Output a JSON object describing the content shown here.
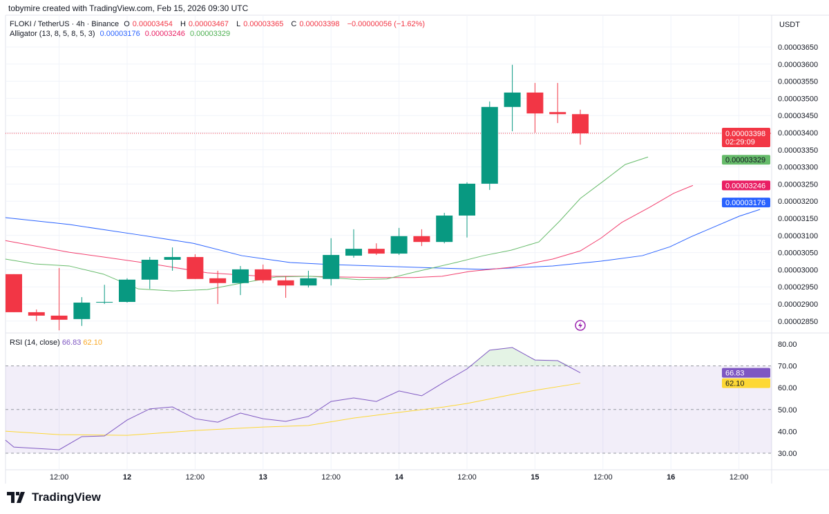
{
  "credit": "tobymire created with TradingView.com, Feb 15, 2026 09:30 UTC",
  "legend": {
    "symbol": "FLOKI / TetherUS · 4h · Binance",
    "o_label": "O",
    "o": "0.00003454",
    "h_label": "H",
    "h": "0.00003467",
    "l_label": "L",
    "l": "0.00003365",
    "c_label": "C",
    "c": "0.00003398",
    "change": "−0.00000056 (−1.62%)",
    "alligator": "Alligator (13, 8, 5, 8, 5, 3)",
    "jaw": "0.00003176",
    "teeth": "0.00003246",
    "lips": "0.00003329"
  },
  "rsi_legend": {
    "label": "RSI (14, close)",
    "rsi": "66.83",
    "ma": "62.10"
  },
  "currency": "USDT",
  "colors": {
    "up": "#089981",
    "down": "#f23645",
    "jaw": "#2962ff",
    "teeth": "#f23d6d",
    "lips": "#66bb6a",
    "rsi": "#7e57c2",
    "rsi_ma": "#fdd835"
  },
  "brand": "TradingView",
  "chart_data": [
    {
      "type": "candlestick",
      "title": "FLOKI / TetherUS · 4h · Binance",
      "price_unit": "1e-8 USDT",
      "ylim": [
        2830,
        3680
      ],
      "y_ticks": [
        "0.00003650",
        "0.00003600",
        "0.00003550",
        "0.00003500",
        "0.00003450",
        "0.00003400",
        "0.00003350",
        "0.00003300",
        "0.00003250",
        "0.00003200",
        "0.00003150",
        "0.00003100",
        "0.00003050",
        "0.00003000",
        "0.00002950",
        "0.00002900",
        "0.00002850"
      ],
      "x_ticks": [
        {
          "i": 2,
          "label": "12:00"
        },
        {
          "i": 5,
          "label": "12"
        },
        {
          "i": 8,
          "label": "12:00"
        },
        {
          "i": 11,
          "label": "13"
        },
        {
          "i": 14,
          "label": "12:00"
        },
        {
          "i": 17,
          "label": "14"
        },
        {
          "i": 20,
          "label": "12:00"
        },
        {
          "i": 23,
          "label": "15"
        },
        {
          "i": 26,
          "label": "12:00"
        },
        {
          "i": 29,
          "label": "16"
        },
        {
          "i": 32,
          "label": "12:00"
        }
      ],
      "candles": [
        [
          2987,
          2987,
          2876,
          2876
        ],
        [
          2876,
          2884,
          2850,
          2866
        ],
        [
          2866,
          3005,
          2823,
          2854
        ],
        [
          2856,
          2920,
          2836,
          2904
        ],
        [
          2904,
          2956,
          2900,
          2906
        ],
        [
          2906,
          2975,
          2904,
          2971
        ],
        [
          2971,
          3037,
          2944,
          3029
        ],
        [
          3029,
          3065,
          2997,
          3037
        ],
        [
          3037,
          3045,
          2973,
          2973
        ],
        [
          2975,
          2997,
          2900,
          2961
        ],
        [
          2961,
          3011,
          2926,
          3001
        ],
        [
          3001,
          3015,
          2961,
          2969
        ],
        [
          2969,
          2981,
          2918,
          2954
        ],
        [
          2954,
          2997,
          2948,
          2975
        ],
        [
          2973,
          3092,
          2954,
          3043
        ],
        [
          3041,
          3118,
          3035,
          3061
        ],
        [
          3061,
          3077,
          3043,
          3047
        ],
        [
          3047,
          3122,
          3043,
          3098
        ],
        [
          3098,
          3118,
          3069,
          3081
        ],
        [
          3081,
          3166,
          3077,
          3158
        ],
        [
          3158,
          3255,
          3094,
          3251
        ],
        [
          3251,
          3491,
          3233,
          3475
        ],
        [
          3475,
          3598,
          3404,
          3517
        ],
        [
          3517,
          3545,
          3400,
          3456
        ],
        [
          3460,
          3545,
          3428,
          3454
        ],
        [
          3454,
          3467,
          3365,
          3398
        ]
      ],
      "alligator": {
        "jaw": [
          [
            -0.37,
            3152
          ],
          [
            2.44,
            3132
          ],
          [
            5.49,
            3102
          ],
          [
            7.93,
            3077
          ],
          [
            10.06,
            3041
          ],
          [
            12.2,
            3021
          ],
          [
            14.02,
            3015
          ],
          [
            17.68,
            3007
          ],
          [
            20.73,
            3001
          ],
          [
            23.78,
            3011
          ],
          [
            25.91,
            3025
          ],
          [
            27.74,
            3041
          ],
          [
            28.96,
            3067
          ],
          [
            29.88,
            3096
          ],
          [
            32.01,
            3156
          ],
          [
            32.93,
            3176
          ]
        ],
        "teeth": [
          [
            -0.37,
            3085
          ],
          [
            2.44,
            3051
          ],
          [
            3.96,
            3037
          ],
          [
            6.1,
            3017
          ],
          [
            8.54,
            2991
          ],
          [
            10.98,
            2981
          ],
          [
            12.8,
            2981
          ],
          [
            15.85,
            2977
          ],
          [
            17.68,
            2977
          ],
          [
            18.9,
            2981
          ],
          [
            20.12,
            2995
          ],
          [
            21.95,
            3007
          ],
          [
            23.78,
            3031
          ],
          [
            25,
            3055
          ],
          [
            25.91,
            3092
          ],
          [
            26.83,
            3138
          ],
          [
            28.05,
            3182
          ],
          [
            29.12,
            3223
          ],
          [
            29.97,
            3246
          ]
        ],
        "lips": [
          [
            -0.37,
            3031
          ],
          [
            0.91,
            3017
          ],
          [
            2.44,
            3011
          ],
          [
            3.96,
            2987
          ],
          [
            5.49,
            2944
          ],
          [
            7.01,
            2938
          ],
          [
            8.54,
            2942
          ],
          [
            10.06,
            2961
          ],
          [
            11.59,
            2979
          ],
          [
            13.11,
            2981
          ],
          [
            15.24,
            2971
          ],
          [
            16.46,
            2973
          ],
          [
            17.68,
            2993
          ],
          [
            19.51,
            3021
          ],
          [
            20.73,
            3041
          ],
          [
            21.95,
            3057
          ],
          [
            23.17,
            3081
          ],
          [
            24.09,
            3142
          ],
          [
            25,
            3208
          ],
          [
            26.07,
            3261
          ],
          [
            26.98,
            3307
          ],
          [
            27.99,
            3329
          ]
        ]
      },
      "last_price_label": "0.00003398",
      "countdown": "02:29:09",
      "jaw_label": "0.00003176",
      "teeth_label": "0.00003246",
      "lips_label": "0.00003329"
    },
    {
      "type": "line",
      "title": "RSI (14, close)",
      "ylim": [
        27,
        84
      ],
      "y_ticks": [
        "80.00",
        "70.00",
        "60.00",
        "50.00",
        "40.00",
        "30.00"
      ],
      "bands": [
        30,
        50,
        70
      ],
      "rsi": [
        [
          -0.37,
          36
        ],
        [
          0,
          32.8
        ],
        [
          2,
          31.6
        ],
        [
          3,
          37.6
        ],
        [
          4,
          37.9
        ],
        [
          5,
          45.2
        ],
        [
          6,
          50.3
        ],
        [
          7,
          51.2
        ],
        [
          8,
          45.8
        ],
        [
          9,
          44.2
        ],
        [
          10,
          48.4
        ],
        [
          11,
          45.8
        ],
        [
          12,
          44.6
        ],
        [
          13,
          46.8
        ],
        [
          14,
          53.7
        ],
        [
          15,
          55.3
        ],
        [
          16,
          53.7
        ],
        [
          17,
          58.5
        ],
        [
          18,
          56.3
        ],
        [
          19,
          62.6
        ],
        [
          20,
          68.6
        ],
        [
          21,
          77.2
        ],
        [
          22,
          78.4
        ],
        [
          23,
          72.7
        ],
        [
          24,
          72.4
        ],
        [
          25,
          66.83
        ]
      ],
      "rsi_ma": [
        [
          -0.37,
          40.1
        ],
        [
          2,
          38.5
        ],
        [
          5,
          38.2
        ],
        [
          8,
          40.4
        ],
        [
          11,
          42
        ],
        [
          13,
          42.7
        ],
        [
          15,
          46.1
        ],
        [
          17,
          48.7
        ],
        [
          19,
          51.2
        ],
        [
          20,
          52.8
        ],
        [
          22,
          56.9
        ],
        [
          23,
          58.8
        ],
        [
          25,
          62.1
        ]
      ],
      "rsi_label": "66.83",
      "ma_label": "62.10"
    }
  ]
}
